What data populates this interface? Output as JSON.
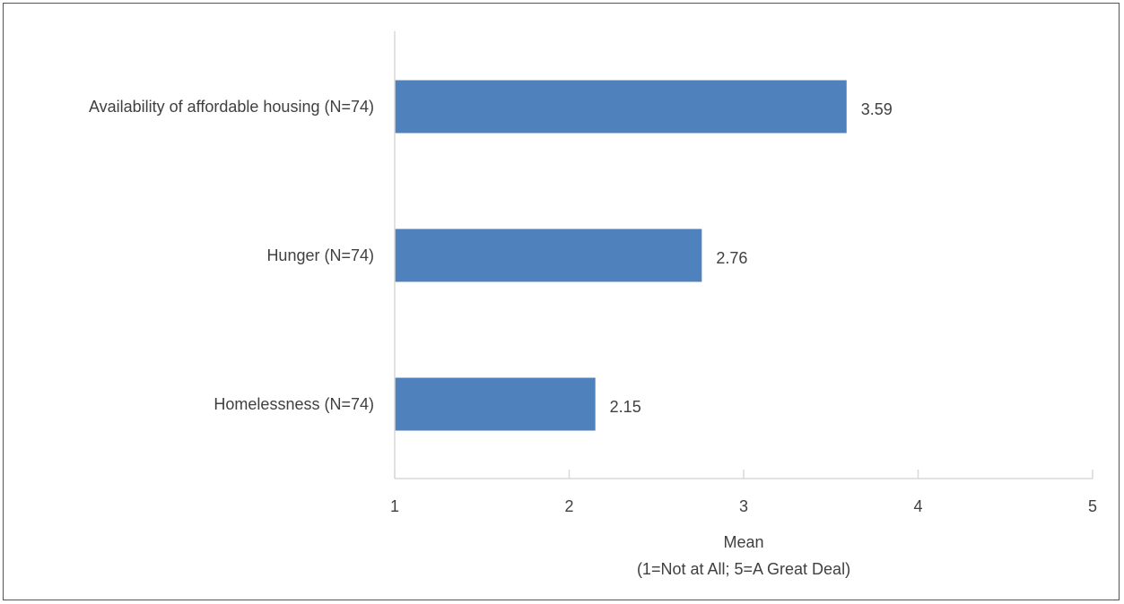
{
  "chart_data": {
    "type": "bar",
    "orientation": "horizontal",
    "categories": [
      "Availability of affordable housing (N=74)",
      "Hunger (N=74)",
      "Homelessness (N=74)"
    ],
    "values": [
      3.59,
      2.76,
      2.15
    ],
    "value_labels": [
      "3.59",
      "2.76",
      "2.15"
    ],
    "x_ticks": [
      "1",
      "2",
      "3",
      "4",
      "5"
    ],
    "xlabel": "Mean",
    "xlabel_sub": "(1=Not at All; 5=A Great Deal)",
    "xlim": [
      1,
      5
    ],
    "grid": false,
    "legend": "none",
    "bar_color": "#4f81bd",
    "axis_color": "#d9d9d9",
    "text_color": "#404040",
    "frame_color": "#2e5d8c"
  }
}
